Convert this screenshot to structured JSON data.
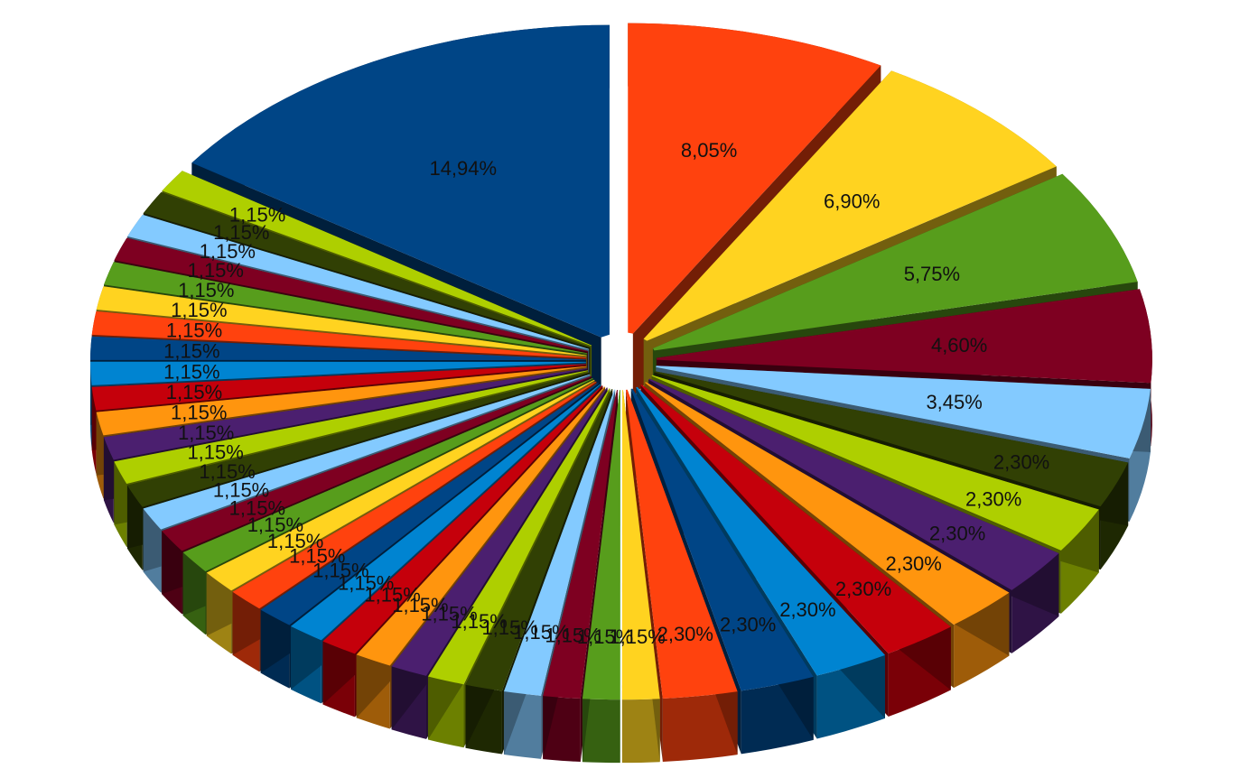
{
  "chart_data": {
    "type": "pie",
    "variant": "3d-exploded",
    "title": "",
    "legend": "none",
    "values": [
      14.94,
      8.05,
      6.9,
      5.75,
      4.6,
      3.45,
      2.3,
      2.3,
      2.3,
      2.3,
      2.3,
      2.3,
      2.3,
      2.3,
      1.15,
      1.15,
      1.15,
      1.15,
      1.15,
      1.15,
      1.15,
      1.15,
      1.15,
      1.15,
      1.15,
      1.15,
      1.15,
      1.15,
      1.15,
      1.15,
      1.15,
      1.15,
      1.15,
      1.15,
      1.15,
      1.15,
      1.15,
      1.15,
      1.15,
      1.15,
      1.15,
      1.15,
      1.15,
      1.15
    ],
    "labels": [
      "14,94%",
      "8,05%",
      "6,90%",
      "5,75%",
      "4,60%",
      "3,45%",
      "2,30%",
      "2,30%",
      "2,30%",
      "2,30%",
      "2,30%",
      "2,30%",
      "2,30%",
      "2,30%",
      "1,15%",
      "1,15%",
      "1,15%",
      "1,15%",
      "1,15%",
      "1,15%",
      "1,15%",
      "1,15%",
      "1,15%",
      "1,15%",
      "1,15%",
      "1,15%",
      "1,15%",
      "1,15%",
      "1,15%",
      "1,15%",
      "1,15%",
      "1,15%",
      "1,15%",
      "1,15%",
      "1,15%",
      "1,15%",
      "1,15%",
      "1,15%",
      "1,15%",
      "1,15%",
      "1,15%",
      "1,15%",
      "1,15%",
      "1,15%"
    ],
    "colors": [
      "#004586",
      "#ff420e",
      "#ffd320",
      "#579d1c",
      "#7e0021",
      "#83caff",
      "#314004",
      "#aecf00",
      "#4b1f6f",
      "#ff950e",
      "#c5000b",
      "#0084d1"
    ]
  }
}
